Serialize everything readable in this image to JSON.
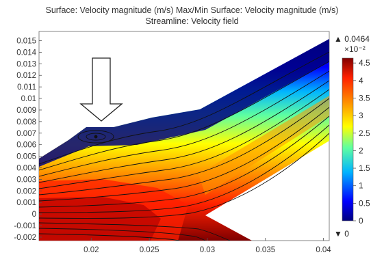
{
  "chart_data": {
    "type": "heatmap",
    "title_line1": "Surface: Velocity magnitude (m/s)  Max/Min Surface: Velocity magnitude (m/s)",
    "title_line2": "Streamline: Velocity field",
    "xlim": [
      0.0155,
      0.0405
    ],
    "ylim": [
      -0.0023,
      0.0158
    ],
    "x_ticks": [
      "0.02",
      "0.025",
      "0.03",
      "0.035",
      "0.04"
    ],
    "x_tick_values": [
      0.02,
      0.025,
      0.03,
      0.035,
      0.04
    ],
    "y_ticks": [
      "0.015",
      "0.014",
      "0.013",
      "0.012",
      "0.011",
      "0.01",
      "0.009",
      "0.008",
      "0.007",
      "0.006",
      "0.005",
      "0.004",
      "0.003",
      "0.002",
      "0.001",
      "0",
      "-0.001",
      "-0.002"
    ],
    "y_tick_values": [
      0.015,
      0.014,
      0.013,
      0.012,
      0.011,
      0.01,
      0.009,
      0.008,
      0.007,
      0.006,
      0.005,
      0.004,
      0.003,
      0.002,
      0.001,
      0,
      -0.001,
      -0.002
    ],
    "colorbar": {
      "scale_label": "×10⁻²",
      "ticks": [
        "4.5",
        "4",
        "3.5",
        "3",
        "2.5",
        "2",
        "1.5",
        "1",
        "0.5",
        "0"
      ],
      "tick_values": [
        4.5,
        4,
        3.5,
        3,
        2.5,
        2,
        1.5,
        1,
        0.5,
        0
      ],
      "range": [
        0,
        4.64
      ],
      "colors": [
        "#00007f",
        "#0000ff",
        "#00b4ff",
        "#5fffa0",
        "#ffff00",
        "#ff9600",
        "#ff2000",
        "#800000"
      ]
    },
    "max_label": "▲ 0.0464",
    "min_label": "▼ 0",
    "max_value": 0.0464,
    "min_value": 0,
    "inlet_arrow_icon": "down-arrow-icon"
  }
}
